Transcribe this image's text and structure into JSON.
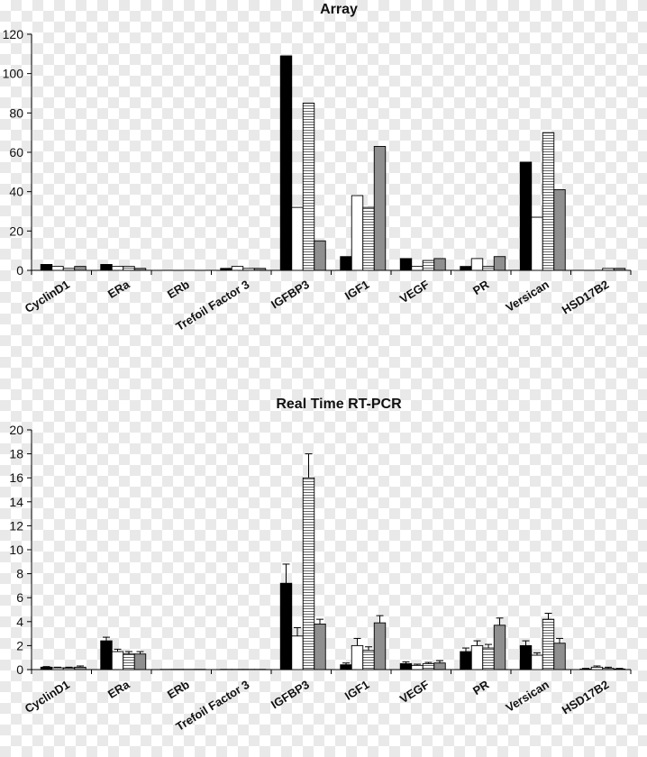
{
  "chart_data": [
    {
      "type": "bar",
      "title": "Array",
      "xlabel": "",
      "ylabel": "",
      "ylim": [
        0,
        120
      ],
      "yticks": [
        0,
        20,
        40,
        60,
        80,
        100,
        120
      ],
      "categories": [
        "CyclinD1",
        "ERa",
        "ERb",
        "Trefoil Factor 3",
        "IGFBP3",
        "IGF1",
        "VEGF",
        "PR",
        "Versican",
        "HSD17B2"
      ],
      "series": [
        {
          "fill": "#000000",
          "values": [
            3,
            3,
            0,
            1,
            109,
            7,
            6,
            2,
            55,
            0
          ]
        },
        {
          "fill": "#ffffff",
          "values": [
            2,
            2,
            0,
            2,
            32,
            38,
            2,
            6,
            27,
            0
          ]
        },
        {
          "fill": "stripes",
          "values": [
            1,
            2,
            0,
            1,
            85,
            32,
            5,
            2,
            70,
            1
          ]
        },
        {
          "fill": "#8f8f8f",
          "values": [
            2,
            1,
            0,
            1,
            15,
            63,
            6,
            7,
            41,
            1
          ]
        }
      ]
    },
    {
      "type": "bar",
      "title": "Real Time RT-PCR",
      "xlabel": "",
      "ylabel": "",
      "ylim": [
        0,
        20
      ],
      "yticks": [
        0,
        2,
        4,
        6,
        8,
        10,
        12,
        14,
        16,
        18,
        20
      ],
      "categories": [
        "CyclinD1",
        "ERa",
        "ERb",
        "Trefoil Factor 3",
        "IGFBP3",
        "IGF1",
        "VEGF",
        "PR",
        "Versican",
        "HSD17B2"
      ],
      "series": [
        {
          "fill": "#000000",
          "values": [
            0.2,
            2.4,
            0.02,
            0.02,
            7.2,
            0.4,
            0.5,
            1.5,
            2.0,
            0.05
          ],
          "errors": [
            0.05,
            0.3,
            0,
            0,
            1.6,
            0.15,
            0.15,
            0.3,
            0.4,
            0.05
          ]
        },
        {
          "fill": "#ffffff",
          "values": [
            0.15,
            1.5,
            0.02,
            0.02,
            2.8,
            2.0,
            0.35,
            2.0,
            1.2,
            0.2
          ],
          "errors": [
            0.05,
            0.2,
            0,
            0,
            0.7,
            0.6,
            0.1,
            0.4,
            0.2,
            0.1
          ]
        },
        {
          "fill": "stripes",
          "values": [
            0.15,
            1.3,
            0.02,
            0.02,
            16.0,
            1.6,
            0.5,
            1.8,
            4.2,
            0.1
          ],
          "errors": [
            0.05,
            0.2,
            0,
            0,
            2.0,
            0.3,
            0.1,
            0.3,
            0.5,
            0.1
          ]
        },
        {
          "fill": "#8f8f8f",
          "values": [
            0.2,
            1.3,
            0.02,
            0.02,
            3.8,
            3.9,
            0.55,
            3.7,
            2.2,
            0.05
          ],
          "errors": [
            0.1,
            0.2,
            0,
            0,
            0.4,
            0.6,
            0.2,
            0.6,
            0.4,
            0.05
          ]
        }
      ]
    }
  ]
}
